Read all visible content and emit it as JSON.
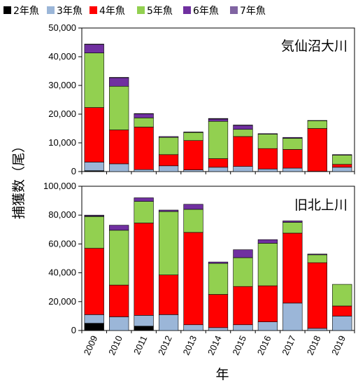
{
  "legend": [
    {
      "name": "2年魚",
      "color": "#000000"
    },
    {
      "name": "3年魚",
      "color": "#9bb6d8"
    },
    {
      "name": "4年魚",
      "color": "#ff0000"
    },
    {
      "name": "5年魚",
      "color": "#92d050"
    },
    {
      "name": "6年魚",
      "color": "#7030a0"
    },
    {
      "name": "7年魚",
      "color": "#8064a2"
    }
  ],
  "x_label": "年",
  "y_label": "捕獲数（尾）",
  "chart_data": [
    {
      "type": "bar",
      "stacked": true,
      "title": "気仙沼大川",
      "categories": [
        "2009",
        "2010",
        "2011",
        "2012",
        "2013",
        "2014",
        "2015",
        "2016",
        "2017",
        "2018",
        "2019"
      ],
      "ylim": [
        0,
        50000
      ],
      "yticks": [
        "0",
        "10,000",
        "20,000",
        "30,000",
        "40,000",
        "50,000"
      ],
      "ytick_values": [
        0,
        10000,
        20000,
        30000,
        40000,
        50000
      ],
      "series": [
        {
          "name": "2年魚",
          "values": [
            300,
            0,
            0,
            0,
            0,
            0,
            0,
            0,
            0,
            0,
            0
          ]
        },
        {
          "name": "3年魚",
          "values": [
            3000,
            2700,
            700,
            2000,
            600,
            1500,
            1800,
            900,
            1200,
            100,
            1500
          ]
        },
        {
          "name": "4年魚",
          "values": [
            19000,
            11800,
            14800,
            3900,
            10200,
            3000,
            10400,
            7100,
            6500,
            14900,
            1000
          ]
        },
        {
          "name": "5年魚",
          "values": [
            19000,
            15200,
            3200,
            6000,
            2800,
            13000,
            2500,
            5000,
            3900,
            2700,
            3200
          ]
        },
        {
          "name": "6年魚",
          "values": [
            3000,
            3000,
            1400,
            300,
            200,
            800,
            1400,
            200,
            300,
            100,
            200
          ]
        },
        {
          "name": "7年魚",
          "values": [
            100,
            100,
            100,
            0,
            0,
            200,
            100,
            0,
            0,
            0,
            0
          ]
        }
      ]
    },
    {
      "type": "bar",
      "stacked": true,
      "title": "旧北上川",
      "categories": [
        "2009",
        "2010",
        "2011",
        "2012",
        "2013",
        "2014",
        "2015",
        "2016",
        "2017",
        "2018",
        "2019"
      ],
      "ylim": [
        0,
        100000
      ],
      "yticks": [
        "0",
        "20,000",
        "40,000",
        "60,000",
        "80,000",
        "100,000"
      ],
      "ytick_values": [
        0,
        20000,
        40000,
        60000,
        80000,
        100000
      ],
      "series": [
        {
          "name": "2年魚",
          "values": [
            5000,
            0,
            3000,
            0,
            0,
            0,
            0,
            0,
            0,
            0,
            0
          ]
        },
        {
          "name": "3年魚",
          "values": [
            6000,
            9500,
            7500,
            11000,
            4000,
            2000,
            4000,
            6000,
            19000,
            1500,
            10000
          ]
        },
        {
          "name": "4年魚",
          "values": [
            46000,
            22000,
            64000,
            27500,
            64000,
            23000,
            26500,
            25000,
            48500,
            45500,
            7000
          ]
        },
        {
          "name": "5年魚",
          "values": [
            22000,
            38000,
            15000,
            44000,
            16000,
            21500,
            20000,
            29500,
            7500,
            5500,
            15000
          ]
        },
        {
          "name": "6年魚",
          "values": [
            500,
            3500,
            2500,
            1000,
            3500,
            1000,
            5500,
            2500,
            1000,
            500,
            0
          ]
        },
        {
          "name": "7年魚",
          "values": [
            500,
            0,
            0,
            0,
            0,
            0,
            0,
            0,
            0,
            0,
            0
          ]
        }
      ]
    }
  ]
}
